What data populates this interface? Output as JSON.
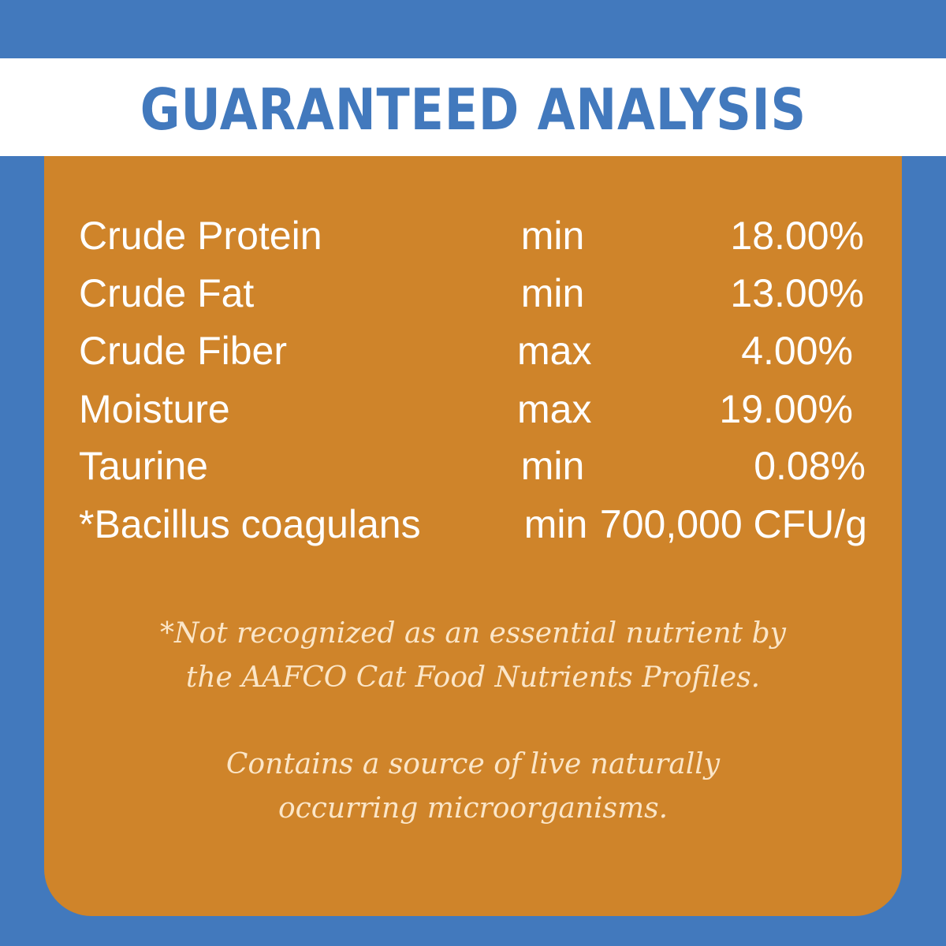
{
  "header": {
    "title": "GUARANTEED ANALYSIS"
  },
  "colors": {
    "background": "#4279bd",
    "panel": "#cf842a",
    "band": "#ffffff",
    "text": "#ffffff"
  },
  "analysis": [
    {
      "nutrient": "Crude Protein",
      "qualifier": "min",
      "value": "18.00%"
    },
    {
      "nutrient": "Crude Fat",
      "qualifier": "min",
      "value": "13.00%"
    },
    {
      "nutrient": "Crude Fiber",
      "qualifier": "max",
      "value": "4.00%"
    },
    {
      "nutrient": "Moisture",
      "qualifier": "max",
      "value": "19.00%"
    },
    {
      "nutrient": "Taurine",
      "qualifier": "min",
      "value": "0.08%"
    },
    {
      "nutrient": "*Bacillus coagulans",
      "qualifier": "min",
      "value": "700,000 CFU/g"
    }
  ],
  "notes": {
    "footnote_line1": "*Not recognized as an essential nutrient by",
    "footnote_line2": "the AAFCO Cat Food Nutrients Profiles.",
    "statement_line1": "Contains a source of live naturally",
    "statement_line2": "occurring microorganisms."
  }
}
